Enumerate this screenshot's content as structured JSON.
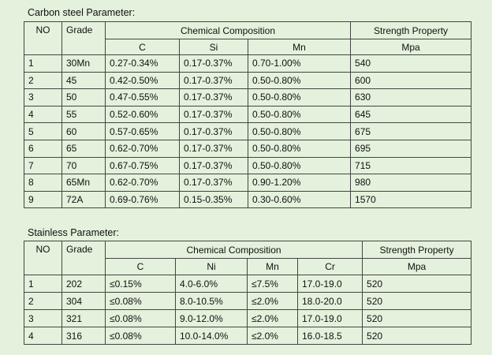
{
  "carbon": {
    "title": "Carbon steel Parameter:",
    "header": {
      "no": "NO",
      "grade": "Grade",
      "group": "Chemical Composition",
      "elements": [
        "C",
        "Si",
        "Mn"
      ],
      "strength": "Strength Property",
      "unit": "Mpa"
    },
    "rows": [
      [
        "1",
        "30Mn",
        "0.27-0.34%",
        "0.17-0.37%",
        "0.70-1.00%",
        "540"
      ],
      [
        "2",
        "45",
        "0.42-0.50%",
        "0.17-0.37%",
        "0.50-0.80%",
        "600"
      ],
      [
        "3",
        "50",
        "0.47-0.55%",
        "0.17-0.37%",
        "0.50-0.80%",
        "630"
      ],
      [
        "4",
        "55",
        "0.52-0.60%",
        "0.17-0.37%",
        "0.50-0.80%",
        "645"
      ],
      [
        "5",
        "60",
        "0.57-0.65%",
        "0.17-0.37%",
        "0.50-0.80%",
        "675"
      ],
      [
        "6",
        "65",
        "0.62-0.70%",
        "0.17-0.37%",
        "0.50-0.80%",
        "695"
      ],
      [
        "7",
        "70",
        "0.67-0.75%",
        "0.17-0.37%",
        "0.50-0.80%",
        "715"
      ],
      [
        "8",
        "65Mn",
        "0.62-0.70%",
        "0.17-0.37%",
        "0.90-1.20%",
        "980"
      ],
      [
        "9",
        "72A",
        "0.69-0.76%",
        "0.15-0.35%",
        "0.30-0.60%",
        "1570"
      ]
    ]
  },
  "stainless": {
    "title": "Stainless Parameter:",
    "header": {
      "no": "NO",
      "grade": "Grade",
      "group": "Chemical Composition",
      "elements": [
        "C",
        "Ni",
        "Mn",
        "Cr"
      ],
      "strength": "Strength Property",
      "unit": "Mpa"
    },
    "rows": [
      [
        "1",
        "202",
        "≤0.15%",
        "4.0-6.0%",
        "≤7.5%",
        "17.0-19.0",
        "520"
      ],
      [
        "2",
        "304",
        "≤0.08%",
        "8.0-10.5%",
        "≤2.0%",
        "18.0-20.0",
        "520"
      ],
      [
        "3",
        "321",
        "≤0.08%",
        "9.0-12.0%",
        "≤2.0%",
        "17.0-19.0",
        "520"
      ],
      [
        "4",
        "316",
        "≤0.08%",
        "10.0-14.0%",
        "≤2.0%",
        "16.0-18.5",
        "520"
      ]
    ]
  }
}
